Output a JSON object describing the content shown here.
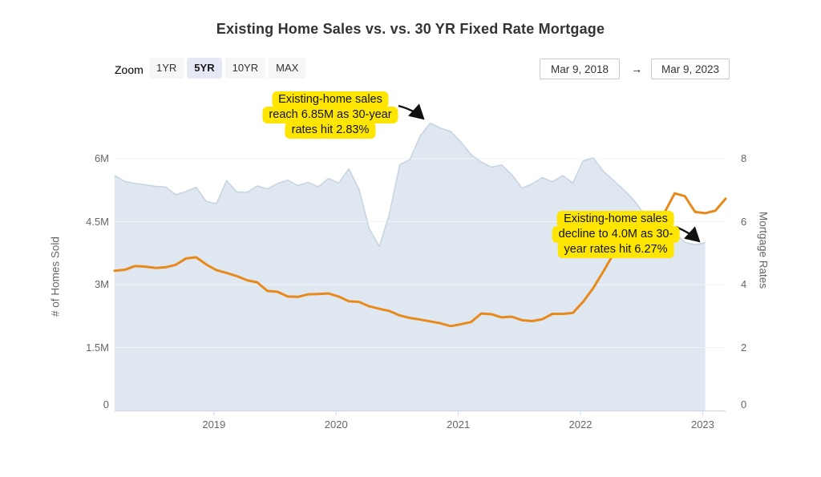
{
  "header": {
    "title": "Existing Home Sales vs. vs. 30 YR Fixed Rate Mortgage"
  },
  "controls": {
    "zoom_label": "Zoom",
    "zoom_buttons": [
      {
        "label": "1YR",
        "selected": false
      },
      {
        "label": "5YR",
        "selected": true
      },
      {
        "label": "10YR",
        "selected": false
      },
      {
        "label": "MAX",
        "selected": false
      }
    ],
    "date_from": "Mar 9, 2018",
    "date_arrow": "→",
    "date_to": "Mar 9, 2023"
  },
  "chart_data": {
    "type": "area",
    "subtype": "dual-axis combo: area (left axis) + line (right axis)",
    "x_unit": "month",
    "x_start": "2018-03",
    "x_end": "2023-03",
    "x_tick_labels": [
      "2019",
      "2020",
      "2021",
      "2022",
      "2023"
    ],
    "grid": "horizontal gridlines on",
    "legend": "none",
    "left_axis": {
      "title": "# of Homes Sold",
      "tick_labels": [
        "0",
        "1.5M",
        "3M",
        "4.5M",
        "6M"
      ],
      "tick_values_millions": [
        0,
        1.5,
        3,
        4.5,
        6
      ]
    },
    "right_axis": {
      "title": "Mortgage Rates",
      "tick_labels": [
        "0",
        "2",
        "4",
        "6",
        "8"
      ],
      "tick_values": [
        0,
        2,
        4,
        6,
        8
      ]
    },
    "series": [
      {
        "name": "Existing Home Sales",
        "type": "area",
        "axis": "left",
        "unit": "millions of homes",
        "fill_color": "#dfe8f0",
        "edge_color": "#c6d3e1",
        "x_start": "2018-03",
        "values": [
          5.6,
          5.46,
          5.41,
          5.38,
          5.34,
          5.33,
          5.14,
          5.22,
          5.32,
          4.98,
          4.93,
          5.48,
          5.21,
          5.2,
          5.35,
          5.28,
          5.41,
          5.49,
          5.36,
          5.44,
          5.33,
          5.53,
          5.42,
          5.76,
          5.27,
          4.33,
          3.91,
          4.7,
          5.86,
          5.98,
          6.54,
          6.85,
          6.73,
          6.65,
          6.4,
          6.1,
          5.92,
          5.8,
          5.85,
          5.62,
          5.3,
          5.4,
          5.55,
          5.45,
          5.6,
          5.42,
          5.95,
          6.02,
          5.7,
          5.48,
          5.26,
          5.01,
          4.68,
          4.49,
          4.42,
          4.24,
          4.01,
          3.95,
          4.0
        ]
      },
      {
        "name": "30 YR Fixed Rate Mortgage",
        "type": "line",
        "axis": "right",
        "unit": "percent",
        "color": "#e8891c",
        "x_start": "2018-03",
        "values": [
          4.44,
          4.47,
          4.59,
          4.57,
          4.53,
          4.55,
          4.63,
          4.83,
          4.87,
          4.64,
          4.46,
          4.37,
          4.27,
          4.14,
          4.07,
          3.8,
          3.77,
          3.62,
          3.61,
          3.69,
          3.7,
          3.72,
          3.62,
          3.47,
          3.45,
          3.31,
          3.23,
          3.16,
          3.02,
          2.94,
          2.89,
          2.83,
          2.77,
          2.68,
          2.74,
          2.81,
          3.08,
          3.06,
          2.96,
          2.98,
          2.87,
          2.84,
          2.9,
          3.07,
          3.07,
          3.1,
          3.45,
          3.89,
          4.42,
          4.98,
          5.23,
          5.52,
          5.41,
          5.55,
          6.29,
          6.9,
          6.81,
          6.31,
          6.27,
          6.35,
          6.73
        ]
      }
    ],
    "annotations": [
      {
        "lines": [
          "Existing-home sales",
          "reach 6.85M as 30-year",
          "rates hit 2.83%"
        ],
        "highlight_color": "#ffe602",
        "arrow_points_to": "area peak (Oct 2020): 6.85M sales"
      },
      {
        "lines": [
          "Existing-home sales",
          "decline to 4.0M as 30-",
          "year rates hit 6.27%"
        ],
        "highlight_color": "#ffe602",
        "arrow_points_to": "area trough (Jan 2023): 4.0M sales"
      }
    ]
  }
}
